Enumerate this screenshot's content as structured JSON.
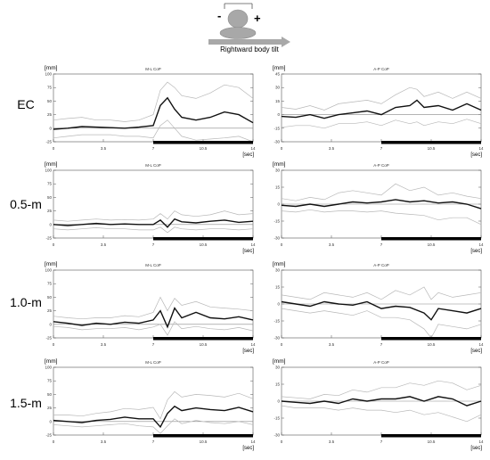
{
  "header": {
    "minus_symbol": "-",
    "plus_symbol": "+",
    "arrow_caption": "Rightward body tilt",
    "head_icon": "head-top-view-icon",
    "arrow_icon": "right-arrow-icon"
  },
  "unit_y": "[mm]",
  "unit_x": "[sec]",
  "xlim": [
    0,
    14
  ],
  "x_ticks": [
    "0",
    "3.5",
    "7",
    "10.5",
    "14"
  ],
  "stimulus_window": [
    7,
    14
  ],
  "colors": {
    "mean_line": "#111111",
    "sd_band": "#b8b8b8",
    "zero_line": "#888888",
    "stimulus_bar": "#000000"
  },
  "rows": [
    {
      "label": "EC"
    },
    {
      "label": "0.5-m"
    },
    {
      "label": "1.0-m"
    },
    {
      "label": "1.5-m"
    }
  ],
  "chart_data": [
    {
      "type": "line",
      "row": 0,
      "col": 0,
      "title": "M-L CoP",
      "ylim": [
        -25,
        100
      ],
      "y_ticks": [
        100,
        75,
        50,
        25,
        0,
        -25
      ],
      "x": [
        0,
        1,
        2,
        3,
        4,
        5,
        6,
        7,
        7.5,
        8,
        8.5,
        9,
        10,
        11,
        12,
        13,
        14
      ],
      "mean": [
        -2,
        0,
        3,
        2,
        1,
        0,
        2,
        5,
        42,
        56,
        35,
        20,
        15,
        20,
        30,
        25,
        10
      ],
      "upper": [
        15,
        18,
        20,
        15,
        15,
        12,
        15,
        25,
        70,
        85,
        75,
        60,
        55,
        65,
        80,
        75,
        55
      ],
      "lower": [
        -18,
        -15,
        -12,
        -12,
        -12,
        -15,
        -15,
        -18,
        5,
        15,
        0,
        -15,
        -22,
        -20,
        -18,
        -15,
        -25
      ]
    },
    {
      "type": "line",
      "row": 0,
      "col": 1,
      "title": "A-P CoP",
      "ylim": [
        -30,
        45
      ],
      "y_ticks": [
        45,
        30,
        15,
        0,
        -15,
        -30
      ],
      "x": [
        0,
        1,
        2,
        3,
        4,
        5,
        6,
        7,
        8,
        9,
        9.5,
        10,
        11,
        12,
        13,
        14
      ],
      "mean": [
        -2,
        -3,
        0,
        -4,
        0,
        2,
        4,
        0,
        8,
        10,
        16,
        8,
        10,
        5,
        12,
        5
      ],
      "upper": [
        8,
        6,
        10,
        5,
        12,
        14,
        16,
        12,
        22,
        30,
        28,
        20,
        25,
        18,
        25,
        18
      ],
      "lower": [
        -14,
        -12,
        -12,
        -15,
        -10,
        -10,
        -8,
        -12,
        -6,
        -10,
        -8,
        -12,
        -8,
        -10,
        -5,
        -10
      ]
    },
    {
      "type": "line",
      "row": 1,
      "col": 0,
      "title": "M-L CoP",
      "ylim": [
        -25,
        100
      ],
      "y_ticks": [
        100,
        75,
        50,
        25,
        0,
        -25
      ],
      "x": [
        0,
        1,
        2,
        3,
        4,
        5,
        6,
        7,
        7.5,
        8,
        8.5,
        9,
        10,
        11,
        12,
        13,
        14
      ],
      "mean": [
        0,
        -2,
        0,
        2,
        0,
        1,
        0,
        0,
        8,
        -5,
        10,
        5,
        3,
        6,
        8,
        4,
        6
      ],
      "upper": [
        8,
        6,
        8,
        10,
        8,
        9,
        8,
        10,
        20,
        10,
        25,
        18,
        15,
        18,
        25,
        18,
        20
      ],
      "lower": [
        -8,
        -10,
        -8,
        -6,
        -8,
        -8,
        -10,
        -10,
        -5,
        -15,
        -5,
        -8,
        -10,
        -8,
        -8,
        -10,
        -8
      ]
    },
    {
      "type": "line",
      "row": 1,
      "col": 1,
      "title": "A-P CoP",
      "ylim": [
        -30,
        30
      ],
      "y_ticks": [
        30,
        15,
        0,
        -15,
        -30
      ],
      "x": [
        0,
        1,
        2,
        3,
        4,
        5,
        6,
        7,
        8,
        9,
        10,
        11,
        12,
        13,
        14
      ],
      "mean": [
        -1,
        -2,
        0,
        -2,
        0,
        2,
        1,
        2,
        4,
        2,
        3,
        1,
        2,
        0,
        -4
      ],
      "upper": [
        5,
        3,
        6,
        4,
        10,
        12,
        10,
        8,
        18,
        12,
        15,
        8,
        10,
        7,
        5
      ],
      "lower": [
        -6,
        -7,
        -5,
        -7,
        -6,
        -6,
        -7,
        -6,
        -8,
        -9,
        -10,
        -14,
        -12,
        -12,
        -18
      ]
    },
    {
      "type": "line",
      "row": 2,
      "col": 0,
      "title": "M-L CoP",
      "ylim": [
        -25,
        100
      ],
      "y_ticks": [
        100,
        75,
        50,
        25,
        0,
        -25
      ],
      "x": [
        0,
        1,
        2,
        3,
        4,
        5,
        6,
        7,
        7.5,
        8,
        8.5,
        9,
        10,
        11,
        12,
        13,
        14
      ],
      "mean": [
        5,
        2,
        -2,
        2,
        0,
        4,
        2,
        8,
        25,
        -5,
        30,
        12,
        22,
        12,
        10,
        14,
        8
      ],
      "upper": [
        15,
        12,
        10,
        12,
        12,
        16,
        14,
        22,
        50,
        25,
        48,
        35,
        42,
        32,
        30,
        28,
        25
      ],
      "lower": [
        -4,
        -6,
        -10,
        -8,
        -8,
        -6,
        -10,
        -5,
        0,
        -20,
        5,
        -8,
        -4,
        -8,
        -10,
        -6,
        -12
      ]
    },
    {
      "type": "line",
      "row": 2,
      "col": 1,
      "title": "A-P CoP",
      "ylim": [
        -30,
        30
      ],
      "y_ticks": [
        30,
        15,
        0,
        -15,
        -30
      ],
      "x": [
        0,
        1,
        2,
        3,
        4,
        5,
        6,
        7,
        8,
        9,
        10,
        10.5,
        11,
        12,
        13,
        14
      ],
      "mean": [
        2,
        0,
        -2,
        2,
        0,
        -1,
        2,
        -4,
        -2,
        -3,
        -8,
        -14,
        -4,
        -6,
        -8,
        -4
      ],
      "upper": [
        8,
        6,
        4,
        10,
        8,
        6,
        10,
        4,
        12,
        8,
        15,
        4,
        10,
        6,
        8,
        10
      ],
      "lower": [
        -4,
        -6,
        -8,
        -6,
        -8,
        -10,
        -6,
        -12,
        -12,
        -14,
        -22,
        -30,
        -18,
        -20,
        -22,
        -18
      ]
    },
    {
      "type": "line",
      "row": 3,
      "col": 0,
      "title": "M-L CoP",
      "ylim": [
        -25,
        100
      ],
      "y_ticks": [
        100,
        75,
        50,
        25,
        0,
        -25
      ],
      "x": [
        0,
        1,
        2,
        3,
        4,
        5,
        6,
        7,
        7.5,
        8,
        8.5,
        9,
        10,
        11,
        12,
        13,
        14
      ],
      "mean": [
        2,
        0,
        -2,
        2,
        4,
        8,
        5,
        5,
        -10,
        15,
        28,
        20,
        25,
        22,
        20,
        26,
        18
      ],
      "upper": [
        12,
        12,
        10,
        15,
        18,
        24,
        22,
        26,
        5,
        40,
        55,
        45,
        50,
        48,
        45,
        52,
        42
      ],
      "lower": [
        -6,
        -8,
        -10,
        -8,
        -6,
        -4,
        -8,
        -10,
        -22,
        -8,
        5,
        -4,
        2,
        -2,
        -4,
        0,
        -6
      ]
    },
    {
      "type": "line",
      "row": 3,
      "col": 1,
      "title": "A-P CoP",
      "ylim": [
        -30,
        30
      ],
      "y_ticks": [
        30,
        15,
        0,
        -15,
        -30
      ],
      "x": [
        0,
        1,
        2,
        3,
        4,
        5,
        6,
        7,
        8,
        9,
        10,
        11,
        12,
        13,
        14
      ],
      "mean": [
        0,
        -1,
        -2,
        0,
        -2,
        2,
        0,
        2,
        2,
        4,
        0,
        4,
        2,
        -4,
        0
      ],
      "upper": [
        4,
        3,
        2,
        6,
        5,
        10,
        8,
        12,
        12,
        16,
        14,
        18,
        16,
        10,
        14
      ],
      "lower": [
        -4,
        -6,
        -6,
        -6,
        -8,
        -6,
        -8,
        -8,
        -10,
        -8,
        -12,
        -10,
        -14,
        -18,
        -12
      ]
    }
  ]
}
